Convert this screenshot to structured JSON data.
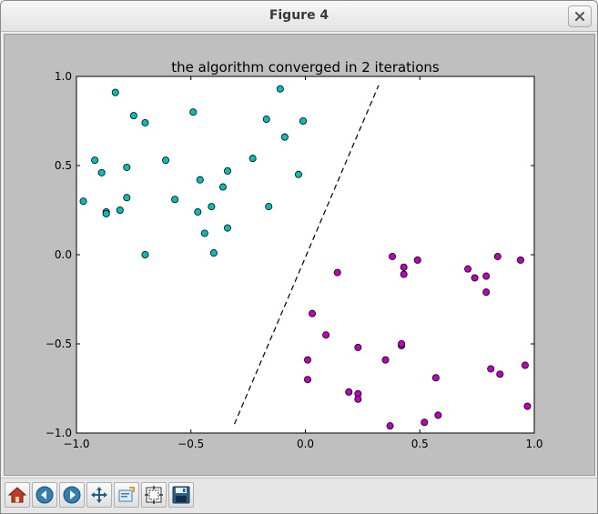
{
  "window": {
    "title": "Figure 4"
  },
  "toolbar": {
    "buttons": [
      {
        "name": "home",
        "icon": "home-icon"
      },
      {
        "name": "back",
        "icon": "arrow-left-icon"
      },
      {
        "name": "forward",
        "icon": "arrow-right-icon"
      },
      {
        "name": "pan",
        "icon": "pan-icon"
      },
      {
        "name": "zoom",
        "icon": "zoom-rect-icon"
      },
      {
        "name": "configure-subplots",
        "icon": "subplots-icon"
      },
      {
        "name": "save",
        "icon": "floppy-disk-icon"
      }
    ]
  },
  "colors": {
    "class_a": "#00bfbf",
    "class_b": "#bf00bf",
    "figure_bg": "#bfbfbf",
    "axes_bg": "#ffffff"
  },
  "chart_data": {
    "type": "scatter",
    "title": "the algorithm converged in 2 iterations",
    "xlabel": "",
    "ylabel": "",
    "xlim": [
      -1.0,
      1.0
    ],
    "ylim": [
      -1.0,
      1.0
    ],
    "xticks": [
      -1.0,
      -0.5,
      0.0,
      0.5,
      1.0
    ],
    "yticks": [
      -1.0,
      -0.5,
      0.0,
      0.5,
      1.0
    ],
    "xtick_labels": [
      "−1.0",
      "−0.5",
      "0.0",
      "0.5",
      "1.0"
    ],
    "ytick_labels": [
      "−1.0",
      "−0.5",
      "0.0",
      "0.5",
      "1.0"
    ],
    "grid": false,
    "series": [
      {
        "color": "#00bfbf",
        "points": [
          [
            -0.97,
            0.3
          ],
          [
            -0.92,
            0.53
          ],
          [
            -0.89,
            0.46
          ],
          [
            -0.87,
            0.24
          ],
          [
            -0.87,
            0.23
          ],
          [
            -0.83,
            0.91
          ],
          [
            -0.81,
            0.25
          ],
          [
            -0.78,
            0.49
          ],
          [
            -0.78,
            0.32
          ],
          [
            -0.75,
            0.78
          ],
          [
            -0.7,
            0.74
          ],
          [
            -0.7,
            0.0
          ],
          [
            -0.61,
            0.53
          ],
          [
            -0.57,
            0.31
          ],
          [
            -0.49,
            0.8
          ],
          [
            -0.47,
            0.24
          ],
          [
            -0.46,
            0.42
          ],
          [
            -0.44,
            0.12
          ],
          [
            -0.41,
            0.27
          ],
          [
            -0.4,
            0.01
          ],
          [
            -0.36,
            0.38
          ],
          [
            -0.34,
            0.47
          ],
          [
            -0.34,
            0.15
          ],
          [
            -0.23,
            0.54
          ],
          [
            -0.17,
            0.76
          ],
          [
            -0.16,
            0.27
          ],
          [
            -0.11,
            0.93
          ],
          [
            -0.09,
            0.66
          ],
          [
            -0.03,
            0.45
          ],
          [
            -0.01,
            0.75
          ]
        ]
      },
      {
        "color": "#bf00bf",
        "points": [
          [
            0.01,
            -0.59
          ],
          [
            0.01,
            -0.7
          ],
          [
            0.03,
            -0.33
          ],
          [
            0.09,
            -0.45
          ],
          [
            0.14,
            -0.1
          ],
          [
            0.19,
            -0.77
          ],
          [
            0.23,
            -0.52
          ],
          [
            0.23,
            -0.78
          ],
          [
            0.23,
            -0.81
          ],
          [
            0.35,
            -0.59
          ],
          [
            0.37,
            -0.96
          ],
          [
            0.38,
            -0.01
          ],
          [
            0.42,
            -0.51
          ],
          [
            0.42,
            -0.5
          ],
          [
            0.43,
            -0.07
          ],
          [
            0.43,
            -0.11
          ],
          [
            0.49,
            -0.03
          ],
          [
            0.52,
            -0.94
          ],
          [
            0.57,
            -0.69
          ],
          [
            0.58,
            -0.9
          ],
          [
            0.71,
            -0.08
          ],
          [
            0.74,
            -0.13
          ],
          [
            0.79,
            -0.12
          ],
          [
            0.79,
            -0.21
          ],
          [
            0.81,
            -0.64
          ],
          [
            0.84,
            -0.01
          ],
          [
            0.85,
            -0.67
          ],
          [
            0.94,
            -0.03
          ],
          [
            0.96,
            -0.62
          ],
          [
            0.97,
            -0.85
          ]
        ]
      }
    ],
    "boundary": {
      "style": "dashed",
      "color": "#000000",
      "x": [
        -0.31,
        0.32
      ],
      "y": [
        -0.95,
        0.95
      ]
    }
  }
}
